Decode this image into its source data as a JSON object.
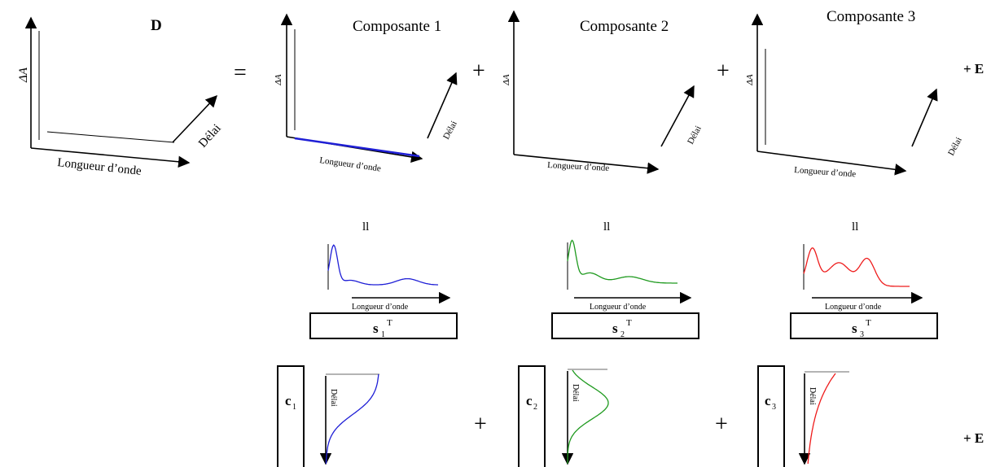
{
  "labels": {
    "matrix_D": "D",
    "delta_a": "ΔA",
    "delai": "Délai",
    "longueur": "Longueur d’onde",
    "composante_1": "Composante 1",
    "composante_2": "Composante 2",
    "composante_3": "Composante 3",
    "equals": "=",
    "plus": "+",
    "parallel": "ll",
    "error_term": "+ E",
    "s_letter": "s",
    "c_letter": "c",
    "transpose": "T",
    "sub_1": "1",
    "sub_2": "2",
    "sub_3": "3"
  },
  "colors": {
    "comp1": "#1f1fd6",
    "comp2": "#1f9a1f",
    "comp3": "#ee1c1c",
    "axis": "#000000",
    "baseline": "#888888"
  }
}
